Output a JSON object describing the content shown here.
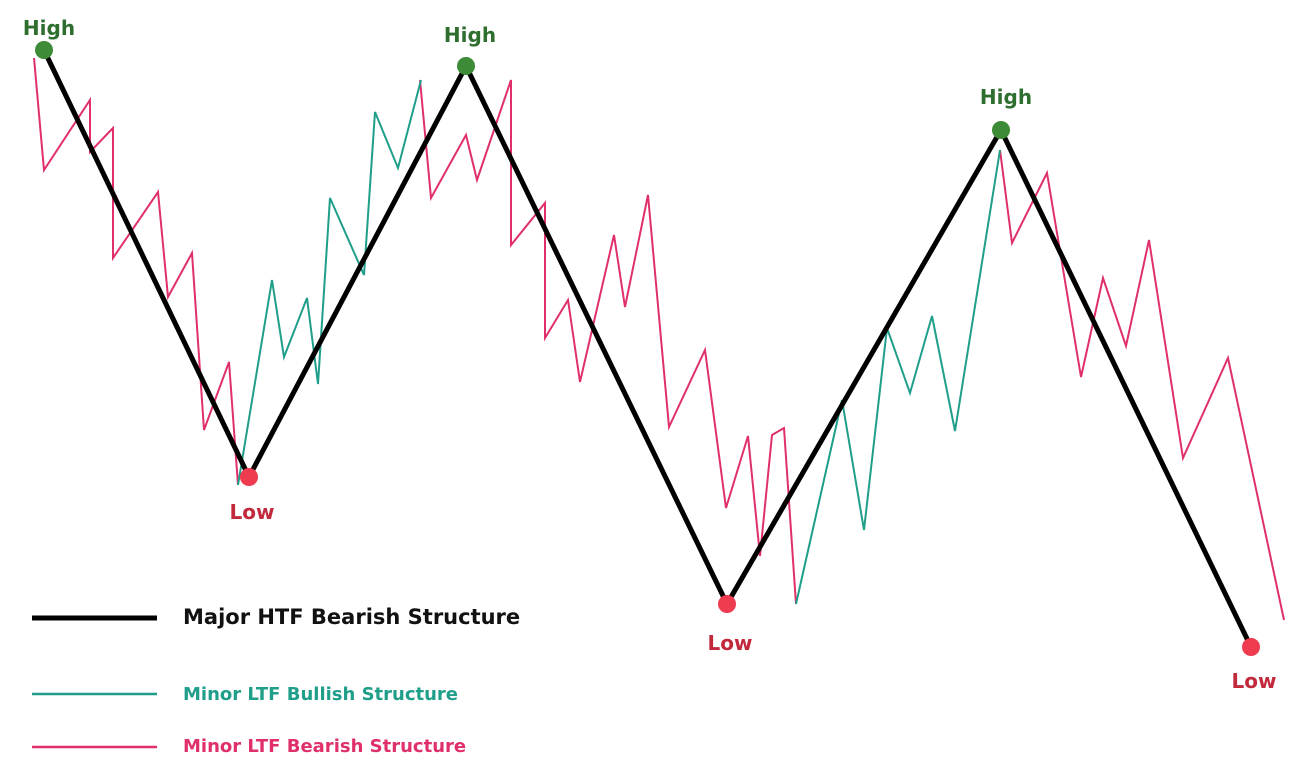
{
  "colors": {
    "major": "#000000",
    "bullish": "#1f9e8a",
    "bearish": "#e0306a",
    "high_dot": "#3d8b37",
    "high_text": "#2e6e2e",
    "low_dot": "#ef3b4f",
    "low_text": "#c2293d"
  },
  "labels": {
    "high": "High",
    "low": "Low"
  },
  "legend": {
    "major": "Major HTF Bearish Structure",
    "bullish": "Minor LTF Bullish Structure",
    "bearish": "Minor LTF Bearish Structure"
  }
}
